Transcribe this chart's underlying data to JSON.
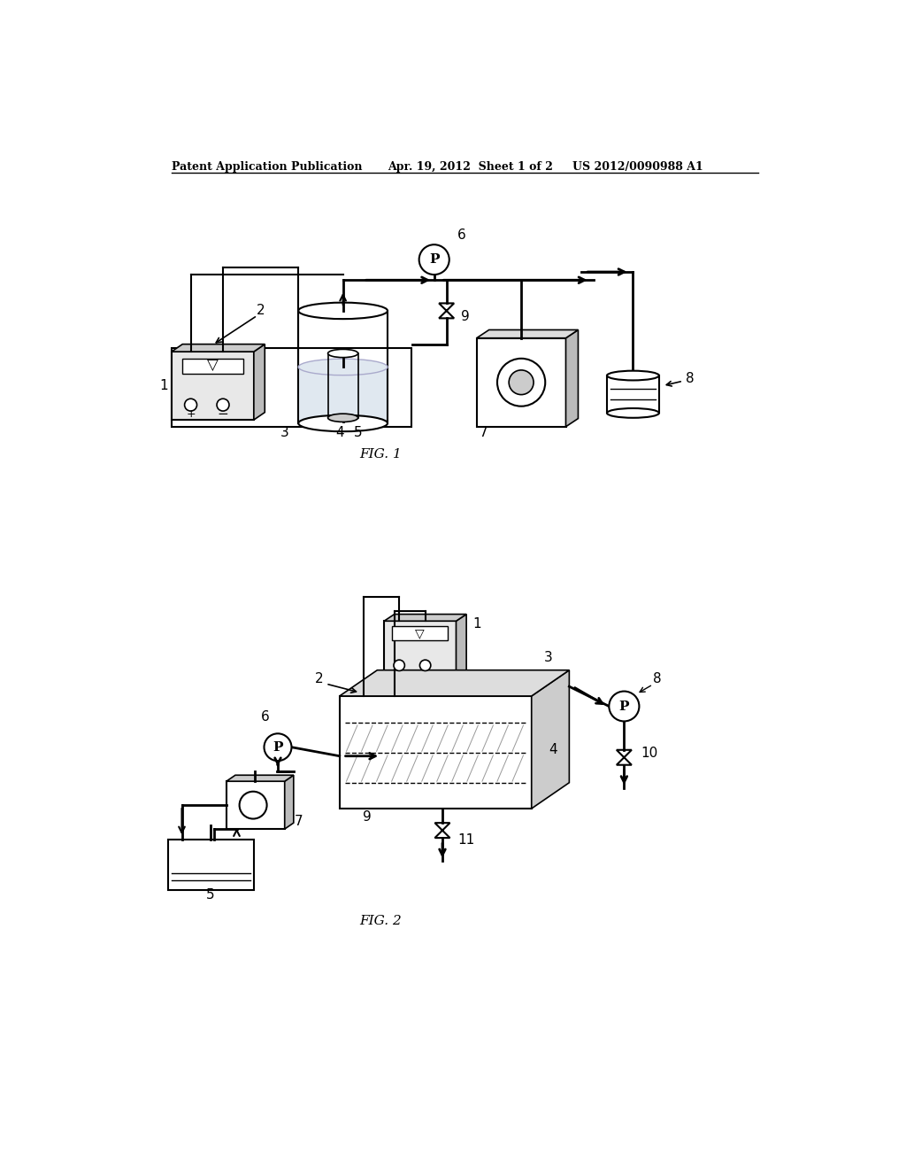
{
  "background_color": "#ffffff",
  "header_left": "Patent Application Publication",
  "header_mid": "Apr. 19, 2012  Sheet 1 of 2",
  "header_right": "US 2012/0090988 A1",
  "fig1_label": "FIG. 1",
  "fig2_label": "FIG. 2",
  "line_color": "#000000",
  "gray_light": "#d8d8d8",
  "gray_medium": "#aaaaaa",
  "gray_shade": "#bbbbbb",
  "gray_top": "#cccccc"
}
